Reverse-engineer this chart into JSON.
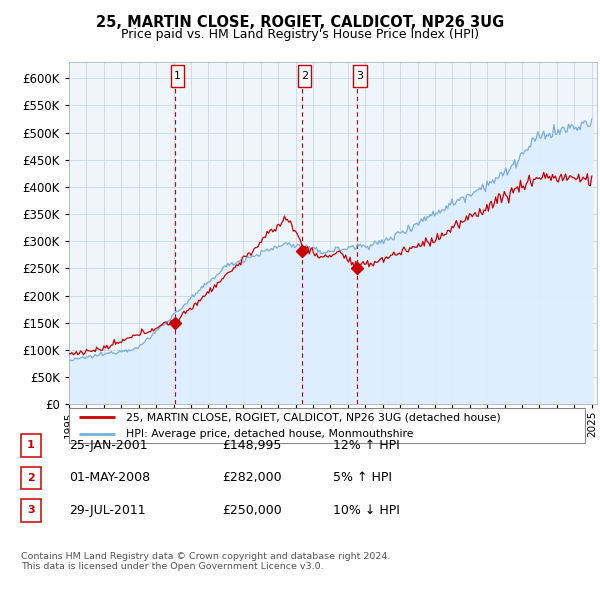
{
  "title": "25, MARTIN CLOSE, ROGIET, CALDICOT, NP26 3UG",
  "subtitle": "Price paid vs. HM Land Registry's House Price Index (HPI)",
  "ytick_vals": [
    0,
    50000,
    100000,
    150000,
    200000,
    250000,
    300000,
    350000,
    400000,
    450000,
    500000,
    550000,
    600000
  ],
  "ylim": [
    0,
    630000
  ],
  "legend_line1": "25, MARTIN CLOSE, ROGIET, CALDICOT, NP26 3UG (detached house)",
  "legend_line2": "HPI: Average price, detached house, Monmouthshire",
  "sale1_date": "25-JAN-2001",
  "sale1_price": "£148,995",
  "sale1_hpi": "12% ↑ HPI",
  "sale2_date": "01-MAY-2008",
  "sale2_price": "£282,000",
  "sale2_hpi": "5% ↑ HPI",
  "sale3_date": "29-JUL-2011",
  "sale3_price": "£250,000",
  "sale3_hpi": "10% ↓ HPI",
  "footer": "Contains HM Land Registry data © Crown copyright and database right 2024.\nThis data is licensed under the Open Government Licence v3.0.",
  "red_color": "#cc0000",
  "blue_color": "#7aaddc",
  "fill_color": "#ddeeff",
  "sale1_year": 2001.07,
  "sale2_year": 2008.37,
  "sale3_year": 2011.55,
  "sale1_value": 148995,
  "sale2_value": 282000,
  "sale3_value": 250000,
  "chart_bg": "#eef5fb"
}
